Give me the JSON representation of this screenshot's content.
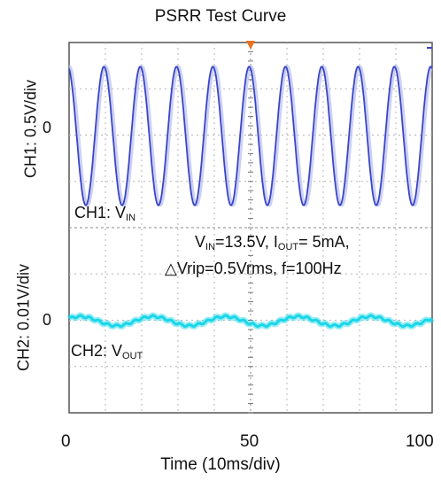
{
  "chart_data": {
    "type": "line",
    "title": "PSRR Test Curve",
    "xlabel": "Time (10ms/div)",
    "x_ticks": [
      "0",
      "50",
      "100"
    ],
    "xlim": [
      0,
      100
    ],
    "grid": true,
    "series": [
      {
        "name": "CH1: VIN",
        "channel_label": "CH1: 0.5V/div",
        "zero_label": "0",
        "color": "#3a45c8",
        "shape": "sine",
        "cycles": 10,
        "frequency_hz": 100,
        "amplitude_div": 1.5
      },
      {
        "name": "CH2: VOUT",
        "channel_label": "CH2: 0.01V/div",
        "zero_label": "0",
        "color": "#19d6e8",
        "shape": "small ripple",
        "cycles": 5,
        "amplitude_div": 0.1
      }
    ],
    "annotations": {
      "ch1_label": {
        "prefix": "CH1: V",
        "sub": "IN"
      },
      "ch2_label": {
        "prefix": "CH2: V",
        "sub": "OUT"
      },
      "conditions_line1": {
        "a": "V",
        "a_sub": "IN",
        "b": "=13.5V, I",
        "b_sub": "OUT",
        "c": "= 5mA,"
      },
      "conditions_line2": "△Vrip=0.5Vrms, f=100Hz"
    }
  }
}
